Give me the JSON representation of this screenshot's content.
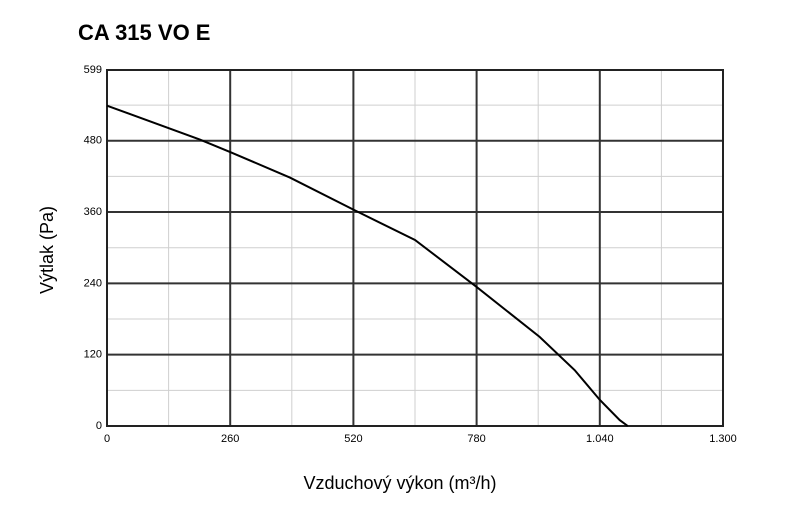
{
  "chart_data": {
    "type": "line",
    "title": "CA 315 VO E",
    "xlabel": "Vzduchový výkon (m³/h)",
    "ylabel": "Výtlak (Pa)",
    "x": [
      0,
      196,
      260,
      386,
      520,
      650,
      780,
      913,
      987,
      1040,
      1082,
      1099
    ],
    "series": [
      {
        "color": "#000000",
        "values": [
          539,
          482,
          461,
          418,
          364,
          313,
          234,
          150,
          94,
          44,
          10,
          0
        ]
      }
    ],
    "xlim": [
      0,
      1300
    ],
    "ylim": [
      0,
      599
    ],
    "xticks": [
      0,
      260,
      520,
      780,
      {
        "value": 1040,
        "label": "1.040"
      },
      {
        "value": 1300,
        "label": "1.300"
      }
    ],
    "yticks": [
      0,
      120,
      240,
      360,
      480,
      599
    ],
    "minor_xticks": [
      130,
      390,
      650,
      910,
      1170
    ],
    "minor_yticks": [
      60,
      180,
      300,
      420,
      540
    ],
    "grid": true
  }
}
